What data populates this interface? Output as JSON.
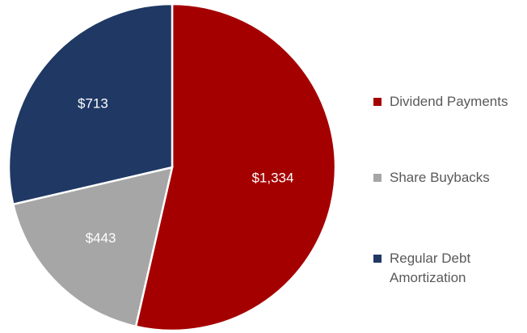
{
  "chart_data": {
    "type": "pie",
    "categories": [
      "Dividend Payments",
      "Share Buybacks",
      "Regular Debt Amortization"
    ],
    "values": [
      1334,
      443,
      713
    ],
    "value_labels": [
      "$1,334",
      "$443",
      "$713"
    ],
    "colors": [
      "#a50000",
      "#a6a6a6",
      "#1f3864"
    ],
    "legend": "right"
  }
}
